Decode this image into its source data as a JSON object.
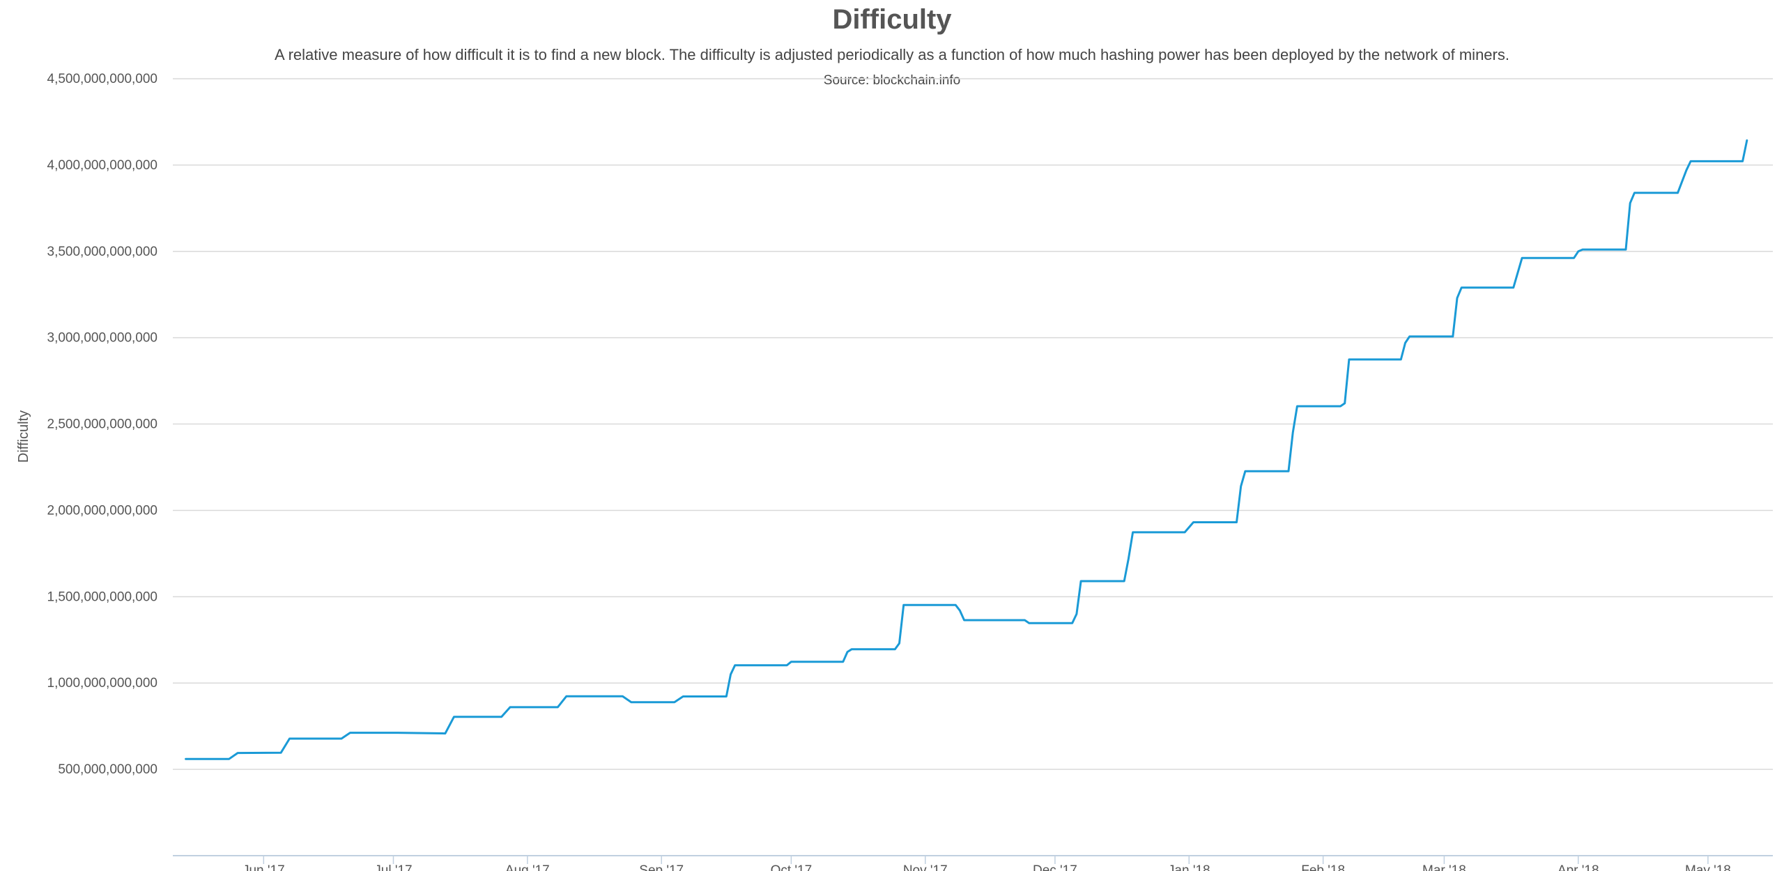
{
  "chart_data": {
    "type": "line",
    "title": "Difficulty",
    "subtitle": "A relative measure of how difficult it is to find a new block. The difficulty is adjusted periodically as a function of how much hashing power has been deployed by the network of miners.",
    "source": "Source: blockchain.info",
    "ylabel": "Difficulty",
    "xlabel": "",
    "ylim": [
      0,
      4500000000000
    ],
    "yticks": [
      500000000000,
      1000000000000,
      1500000000000,
      2000000000000,
      2500000000000,
      3000000000000,
      3500000000000,
      4000000000000,
      4500000000000
    ],
    "ytick_labels": [
      "500,000,000,000",
      "1,000,000,000,000",
      "1,500,000,000,000",
      "2,000,000,000,000",
      "2,500,000,000,000",
      "3,000,000,000,000",
      "3,500,000,000,000",
      "4,000,000,000,000",
      "4,500,000,000,000"
    ],
    "xlim": [
      "2017-05-11",
      "2018-05-16"
    ],
    "xticks": [
      "2017-06-01",
      "2017-07-01",
      "2017-08-01",
      "2017-09-01",
      "2017-10-01",
      "2017-11-01",
      "2017-12-01",
      "2018-01-01",
      "2018-02-01",
      "2018-03-01",
      "2018-04-01",
      "2018-05-01"
    ],
    "xtick_labels": [
      "Jun '17",
      "Jul '17",
      "Aug '17",
      "Sep '17",
      "Oct '17",
      "Nov '17",
      "Dec '17",
      "Jan '18",
      "Feb '18",
      "Mar '18",
      "Apr '18",
      "May '18"
    ],
    "grid": true,
    "line_color": "#1a9ad6",
    "series": [
      {
        "name": "",
        "points": [
          [
            "2017-05-14",
            560000000000
          ],
          [
            "2017-05-24",
            560000000000
          ],
          [
            "2017-05-26",
            595000000000
          ],
          [
            "2017-06-05",
            596000000000
          ],
          [
            "2017-06-07",
            678000000000
          ],
          [
            "2017-06-19",
            678000000000
          ],
          [
            "2017-06-21",
            712000000000
          ],
          [
            "2017-07-02",
            712000000000
          ],
          [
            "2017-07-13",
            708000000000
          ],
          [
            "2017-07-15",
            804000000000
          ],
          [
            "2017-07-26",
            804000000000
          ],
          [
            "2017-07-28",
            860000000000
          ],
          [
            "2017-08-08",
            860000000000
          ],
          [
            "2017-08-10",
            923000000000
          ],
          [
            "2017-08-23",
            923000000000
          ],
          [
            "2017-08-25",
            889000000000
          ],
          [
            "2017-09-04",
            889000000000
          ],
          [
            "2017-09-06",
            922000000000
          ],
          [
            "2017-09-16",
            922000000000
          ],
          [
            "2017-09-17",
            1050000000000
          ],
          [
            "2017-09-18",
            1103000000000
          ],
          [
            "2017-09-30",
            1103000000000
          ],
          [
            "2017-10-01",
            1123000000000
          ],
          [
            "2017-10-13",
            1123000000000
          ],
          [
            "2017-10-14",
            1180000000000
          ],
          [
            "2017-10-15",
            1196000000000
          ],
          [
            "2017-10-25",
            1196000000000
          ],
          [
            "2017-10-26",
            1230000000000
          ],
          [
            "2017-10-27",
            1452000000000
          ],
          [
            "2017-11-08",
            1452000000000
          ],
          [
            "2017-11-09",
            1420000000000
          ],
          [
            "2017-11-10",
            1364000000000
          ],
          [
            "2017-11-24",
            1364000000000
          ],
          [
            "2017-11-25",
            1347000000000
          ],
          [
            "2017-12-05",
            1347000000000
          ],
          [
            "2017-12-06",
            1400000000000
          ],
          [
            "2017-12-07",
            1590000000000
          ],
          [
            "2017-12-17",
            1590000000000
          ],
          [
            "2017-12-18",
            1720000000000
          ],
          [
            "2017-12-19",
            1873000000000
          ],
          [
            "2017-12-31",
            1873000000000
          ],
          [
            "2018-01-02",
            1931000000000
          ],
          [
            "2018-01-12",
            1931000000000
          ],
          [
            "2018-01-13",
            2140000000000
          ],
          [
            "2018-01-14",
            2227000000000
          ],
          [
            "2018-01-24",
            2227000000000
          ],
          [
            "2018-01-25",
            2450000000000
          ],
          [
            "2018-01-26",
            2603000000000
          ],
          [
            "2018-02-05",
            2603000000000
          ],
          [
            "2018-02-06",
            2620000000000
          ],
          [
            "2018-02-07",
            2874000000000
          ],
          [
            "2018-02-19",
            2874000000000
          ],
          [
            "2018-02-20",
            2970000000000
          ],
          [
            "2018-02-21",
            3007000000000
          ],
          [
            "2018-03-03",
            3007000000000
          ],
          [
            "2018-03-04",
            3230000000000
          ],
          [
            "2018-03-05",
            3290000000000
          ],
          [
            "2018-03-17",
            3290000000000
          ],
          [
            "2018-03-19",
            3462000000000
          ],
          [
            "2018-03-31",
            3462000000000
          ],
          [
            "2018-04-01",
            3500000000000
          ],
          [
            "2018-04-02",
            3511000000000
          ],
          [
            "2018-04-12",
            3511000000000
          ],
          [
            "2018-04-13",
            3780000000000
          ],
          [
            "2018-04-14",
            3839000000000
          ],
          [
            "2018-04-24",
            3839000000000
          ],
          [
            "2018-04-26",
            3970000000000
          ],
          [
            "2018-04-27",
            4022000000000
          ],
          [
            "2018-05-09",
            4022000000000
          ],
          [
            "2018-05-10",
            4143000000000
          ]
        ]
      }
    ]
  }
}
